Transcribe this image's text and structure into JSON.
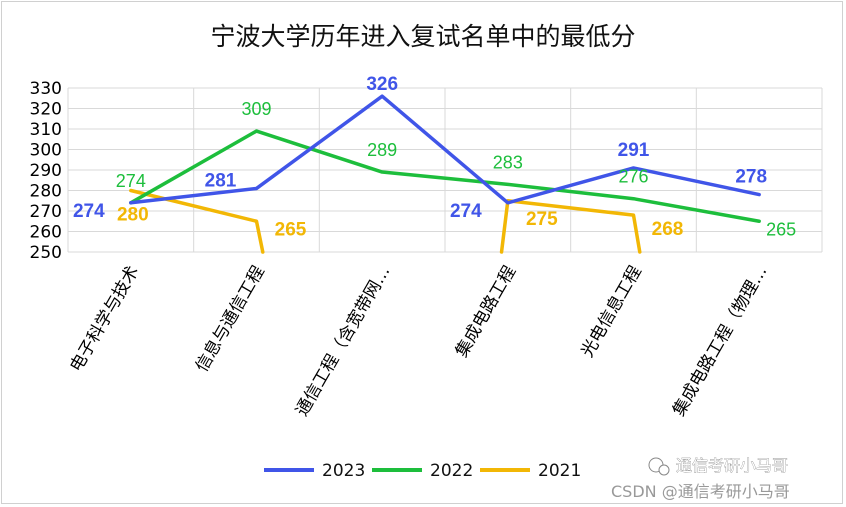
{
  "chart_data": {
    "type": "line",
    "title": "宁波大学历年进入复试名单中的最低分",
    "categories": [
      "电子科学与技术",
      "信息与通信工程",
      "通信工程（含宽带网…",
      "集成电路工程",
      "光电信息工程",
      "集成电路工程（物理…"
    ],
    "ylim": [
      250,
      330
    ],
    "yticks": [
      250,
      260,
      270,
      280,
      290,
      300,
      310,
      320,
      330
    ],
    "grid": true,
    "legend_position": "bottom",
    "series": [
      {
        "name": "2023",
        "color": "#4055E8",
        "values": [
          274,
          281,
          326,
          274,
          291,
          278
        ],
        "labels": [
          "274",
          "281",
          "326",
          "274",
          "291",
          "278"
        ]
      },
      {
        "name": "2022",
        "color": "#1DBE3C",
        "values": [
          274,
          309,
          289,
          283,
          276,
          265
        ],
        "labels": [
          "274",
          "309",
          "289",
          "283",
          "276",
          "265"
        ]
      },
      {
        "name": "2021",
        "color": "#F2B705",
        "values": [
          280,
          265,
          null,
          275,
          268,
          null
        ],
        "labels": [
          "280",
          "265",
          "",
          "275",
          "268",
          ""
        ]
      }
    ]
  },
  "watermark": {
    "brand": "通信考研小马哥",
    "csdn": "CSDN @通信考研小马哥"
  }
}
